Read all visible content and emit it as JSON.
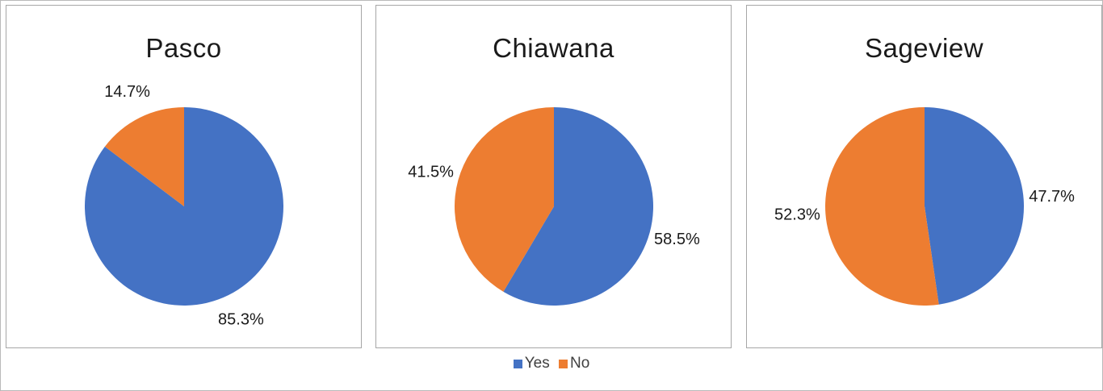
{
  "colors": {
    "yes": "#4472C4",
    "no": "#ED7D31"
  },
  "legend": {
    "yes_label": "Yes",
    "no_label": "No"
  },
  "chart_data": [
    {
      "type": "pie",
      "title": "Pasco",
      "slices": [
        {
          "label": "Yes",
          "value": 85.3,
          "display": "85.3%"
        },
        {
          "label": "No",
          "value": 14.7,
          "display": "14.7%"
        }
      ]
    },
    {
      "type": "pie",
      "title": "Chiawana",
      "slices": [
        {
          "label": "Yes",
          "value": 58.5,
          "display": "58.5%"
        },
        {
          "label": "No",
          "value": 41.5,
          "display": "41.5%"
        }
      ]
    },
    {
      "type": "pie",
      "title": "Sageview",
      "slices": [
        {
          "label": "Yes",
          "value": 47.7,
          "display": "47.7%"
        },
        {
          "label": "No",
          "value": 52.3,
          "display": "52.3%"
        }
      ]
    }
  ]
}
